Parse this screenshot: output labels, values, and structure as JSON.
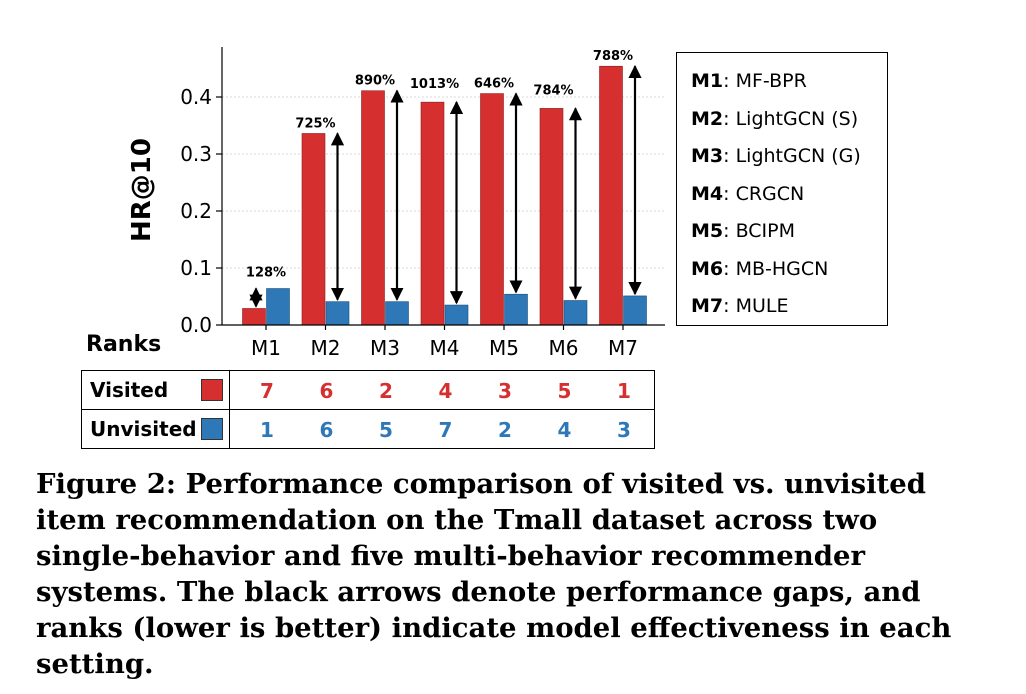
{
  "chart_data": {
    "type": "bar",
    "ylabel": "HR@10",
    "ylim": [
      0,
      0.45
    ],
    "yticks": [
      "0.0",
      "0.1",
      "0.2",
      "0.3",
      "0.4"
    ],
    "grid": true,
    "categories": [
      "M1",
      "M2",
      "M3",
      "M4",
      "M5",
      "M6",
      "M7"
    ],
    "colors": {
      "visited": "#d62f2f",
      "unvisited": "#2e78b7"
    },
    "series": [
      {
        "name": "Visited",
        "values": [
          0.029,
          0.336,
          0.411,
          0.391,
          0.406,
          0.38,
          0.454
        ]
      },
      {
        "name": "Unvisited",
        "values": [
          0.064,
          0.041,
          0.041,
          0.035,
          0.054,
          0.043,
          0.051
        ]
      }
    ],
    "gap_labels": [
      "128%",
      "725%",
      "890%",
      "1013%",
      "646%",
      "784%",
      "788%"
    ]
  },
  "legend": [
    {
      "code": "M1",
      "name": ": MF-BPR"
    },
    {
      "code": "M2",
      "name": ": LightGCN (S)"
    },
    {
      "code": "M3",
      "name": ": LightGCN (G)"
    },
    {
      "code": "M4",
      "name": ": CRGCN"
    },
    {
      "code": "M5",
      "name": ": BCIPM"
    },
    {
      "code": "M6",
      "name": ": MB-HGCN"
    },
    {
      "code": "M7",
      "name": ": MULE"
    }
  ],
  "ranks": {
    "title": "Ranks",
    "visited": {
      "label": "Visited",
      "values": [
        "7",
        "6",
        "2",
        "4",
        "3",
        "5",
        "1"
      ]
    },
    "unvisited": {
      "label": "Unvisited",
      "values": [
        "1",
        "6",
        "5",
        "7",
        "2",
        "4",
        "3"
      ]
    }
  },
  "caption": "Figure 2: Performance comparison of visited vs. unvisited item recommendation on the Tmall dataset across two single-behavior and five multi-behavior recommender systems. The black arrows denote performance gaps, and ranks (lower is better) indicate model effectiveness in each setting."
}
